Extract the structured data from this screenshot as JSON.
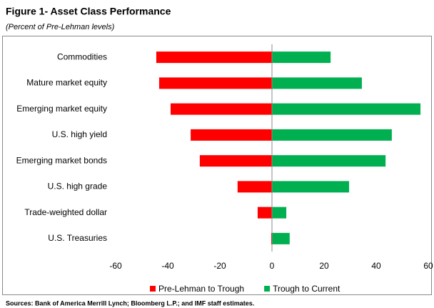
{
  "chart_data": {
    "type": "bar",
    "orientation": "horizontal",
    "title": "Figure 1- Asset Class Performance",
    "subtitle": "(Percent of Pre-Lehman levels)",
    "source": "Sources: Bank of America Merrill Lynch; Bloomberg L.P.;  and IMF staff estimates.",
    "categories": [
      "Commodities",
      "Mature market equity",
      "Emerging market equity",
      "U.S. high yield",
      "Emerging market bonds",
      "U.S. high grade",
      "Trade-weighted dollar",
      "U.S. Treasuries"
    ],
    "series": [
      {
        "name": "Pre-Lehman to Trough",
        "color": "#ff0000",
        "values": [
          -44.4,
          -43.3,
          -38.9,
          -31.2,
          -27.7,
          -13.2,
          -5.5,
          -0.3
        ]
      },
      {
        "name": "Trough to Current",
        "color": "#00b050",
        "values": [
          22.5,
          34.5,
          57,
          46,
          43.6,
          29.6,
          5.5,
          6.8
        ]
      }
    ],
    "xlim": [
      -60,
      60
    ],
    "xticks": [
      -60,
      -40,
      -20,
      0,
      20,
      40,
      60
    ],
    "legend": "bottom"
  }
}
